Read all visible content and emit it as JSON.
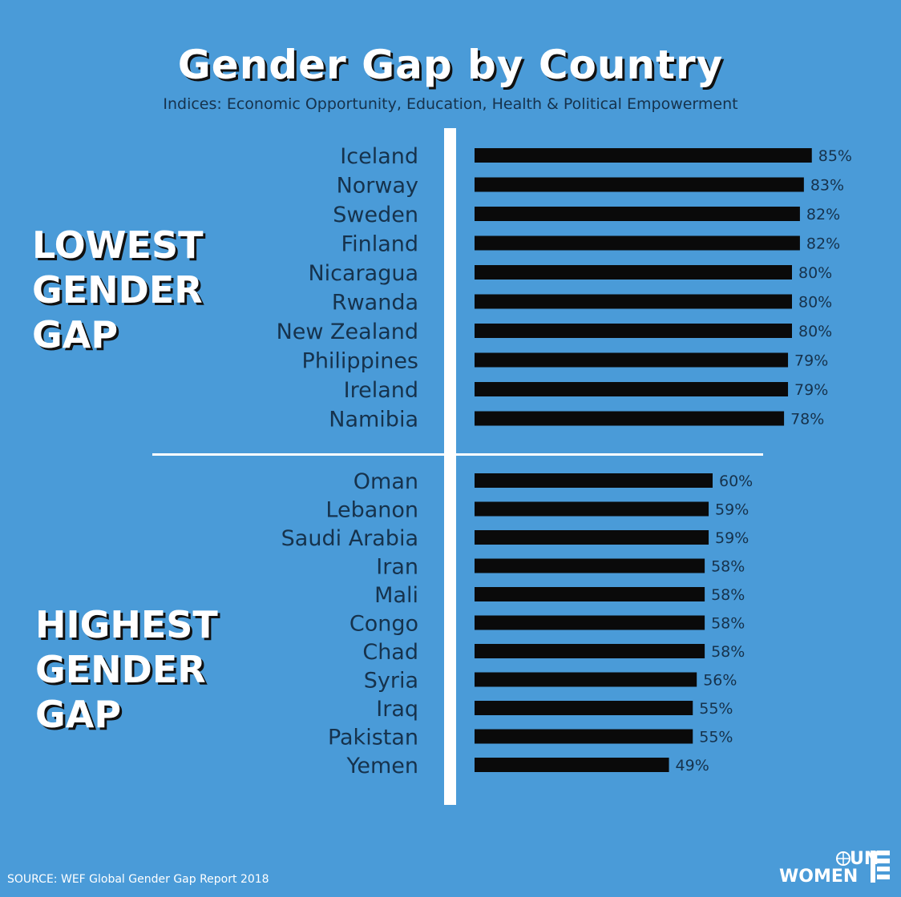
{
  "title": "Gender Gap by Country",
  "subtitle": "Indices: Economic Opportunity, Education, Health & Political Empowerment",
  "groups": {
    "lowest": [
      "LOWEST",
      "GENDER",
      "GAP"
    ],
    "highest": [
      "HIGHEST",
      "GENDER",
      "GAP"
    ]
  },
  "source": "SOURCE: WEF Global Gender Gap Report 2018",
  "logo": {
    "line1": "UN",
    "line2": "WOMEN",
    "icon": "un-emblem-icon"
  },
  "colors": {
    "background": "#4a9bd8",
    "bar": "#0a0a0a",
    "label": "#16324c",
    "divider": "#ffffff"
  },
  "chart_data": {
    "type": "bar",
    "orientation": "horizontal",
    "value_suffix": "%",
    "groups": [
      {
        "name": "LOWEST GENDER GAP",
        "categories": [
          "Iceland",
          "Norway",
          "Sweden",
          "Finland",
          "Nicaragua",
          "Rwanda",
          "New Zealand",
          "Philippines",
          "Ireland",
          "Namibia"
        ],
        "values": [
          85,
          83,
          82,
          82,
          80,
          80,
          80,
          79,
          79,
          78
        ],
        "labels": [
          "85%",
          "83%",
          "82%",
          "82%",
          "80%",
          "80%",
          "80%",
          "79%",
          "79%",
          "78%"
        ]
      },
      {
        "name": "HIGHEST GENDER GAP",
        "categories": [
          "Oman",
          "Lebanon",
          "Saudi Arabia",
          "Iran",
          "Mali",
          "Congo",
          "Chad",
          "Syria",
          "Iraq",
          "Pakistan",
          "Yemen"
        ],
        "values": [
          60,
          59,
          59,
          58,
          58,
          58,
          58,
          56,
          55,
          55,
          49
        ],
        "labels": [
          "60%",
          "59%",
          "59%",
          "58%",
          "58%",
          "58%",
          "58%",
          "56%",
          "55%",
          "55%",
          "49%"
        ]
      }
    ],
    "grid": false,
    "legend": "none"
  }
}
